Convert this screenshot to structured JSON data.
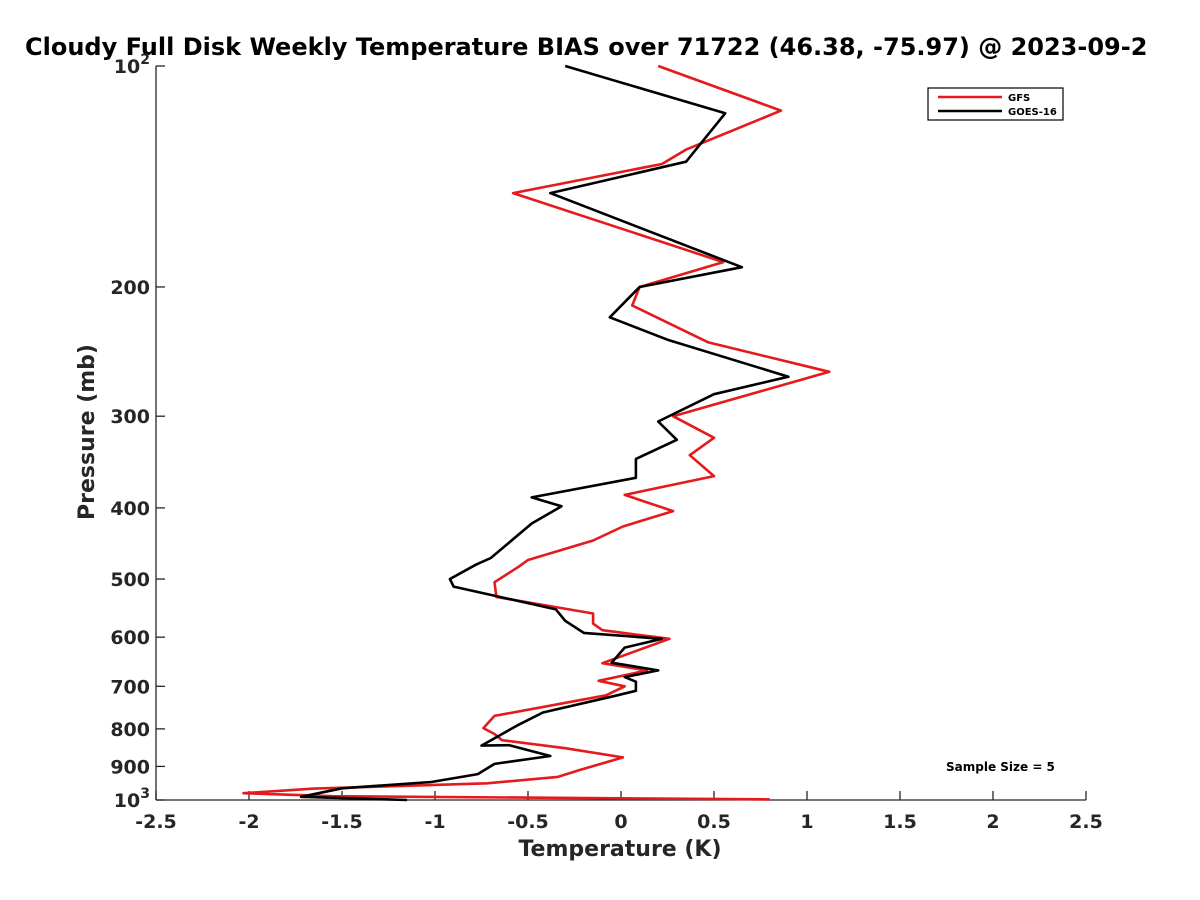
{
  "chart_data": {
    "type": "line",
    "title": "Cloudy Full Disk Weekly Temperature BIAS over 71722 (46.38, -75.97) @ 2023-09-2",
    "xlabel": "Temperature (K)",
    "ylabel": "Pressure (mb)",
    "xlim": [
      -2.5,
      2.5
    ],
    "ylim": [
      100,
      1000
    ],
    "yscale": "log",
    "yreversed": true,
    "x_ticks": [
      "-2.5",
      "-2",
      "-1.5",
      "-1",
      "-0.5",
      "0",
      "0.5",
      "1",
      "1.5",
      "2",
      "2.5"
    ],
    "x_tick_values": [
      -2.5,
      -2,
      -1.5,
      -1,
      -0.5,
      0,
      0.5,
      1,
      1.5,
      2,
      2.5
    ],
    "y_ticks": [
      {
        "value": 100,
        "base": "10",
        "exp": "2"
      },
      {
        "value": 200,
        "label": "200"
      },
      {
        "value": 300,
        "label": "300"
      },
      {
        "value": 400,
        "label": "400"
      },
      {
        "value": 500,
        "label": "500"
      },
      {
        "value": 600,
        "label": "600"
      },
      {
        "value": 700,
        "label": "700"
      },
      {
        "value": 800,
        "label": "800"
      },
      {
        "value": 900,
        "label": "900"
      },
      {
        "value": 1000,
        "base": "10",
        "exp": "3"
      }
    ],
    "legend_position": "top-right",
    "grid": false,
    "series": [
      {
        "name": "GFS",
        "color": "#e41a1c",
        "points": [
          [
            0.2,
            100
          ],
          [
            0.86,
            115
          ],
          [
            0.35,
            130
          ],
          [
            0.22,
            136
          ],
          [
            -0.58,
            149
          ],
          [
            0.55,
            185
          ],
          [
            0.1,
            200
          ],
          [
            0.06,
            212
          ],
          [
            0.47,
            238
          ],
          [
            1.12,
            261
          ],
          [
            0.28,
            300
          ],
          [
            0.5,
            321
          ],
          [
            0.37,
            339
          ],
          [
            0.5,
            362
          ],
          [
            0.02,
            384
          ],
          [
            0.28,
            404
          ],
          [
            0.01,
            424
          ],
          [
            -0.15,
            443
          ],
          [
            -0.5,
            471
          ],
          [
            -0.55,
            481
          ],
          [
            -0.68,
            505
          ],
          [
            -0.67,
            529
          ],
          [
            -0.15,
            557
          ],
          [
            -0.15,
            575
          ],
          [
            -0.1,
            587
          ],
          [
            0.26,
            603
          ],
          [
            -0.1,
            651
          ],
          [
            0.14,
            666
          ],
          [
            -0.12,
            688
          ],
          [
            0.02,
            700
          ],
          [
            -0.08,
            720
          ],
          [
            -0.68,
            768
          ],
          [
            -0.74,
            798
          ],
          [
            -0.68,
            813
          ],
          [
            -0.64,
            829
          ],
          [
            -0.3,
            850
          ],
          [
            0.01,
            875
          ],
          [
            -0.22,
            910
          ],
          [
            -0.34,
            930
          ],
          [
            -0.72,
            949
          ],
          [
            -1.65,
            965
          ],
          [
            -2.03,
            979
          ],
          [
            -1.55,
            988
          ],
          [
            0.8,
            998
          ]
        ]
      },
      {
        "name": "GOES-16",
        "color": "#000000",
        "points": [
          [
            -0.3,
            100
          ],
          [
            0.56,
            116
          ],
          [
            0.35,
            135
          ],
          [
            -0.38,
            149
          ],
          [
            0.65,
            188
          ],
          [
            0.1,
            200
          ],
          [
            -0.06,
            220
          ],
          [
            0.25,
            236
          ],
          [
            0.9,
            265
          ],
          [
            0.5,
            280
          ],
          [
            0.2,
            305
          ],
          [
            0.3,
            323
          ],
          [
            0.08,
            343
          ],
          [
            0.08,
            364
          ],
          [
            -0.48,
            387
          ],
          [
            -0.32,
            398
          ],
          [
            -0.48,
            420
          ],
          [
            -0.7,
            468
          ],
          [
            -0.78,
            478
          ],
          [
            -0.92,
            500
          ],
          [
            -0.9,
            512
          ],
          [
            -0.35,
            550
          ],
          [
            -0.3,
            570
          ],
          [
            -0.2,
            592
          ],
          [
            0.22,
            603
          ],
          [
            0.02,
            620
          ],
          [
            -0.05,
            650
          ],
          [
            0.2,
            666
          ],
          [
            0.02,
            680
          ],
          [
            0.08,
            690
          ],
          [
            0.08,
            710
          ],
          [
            -0.02,
            720
          ],
          [
            -0.42,
            760
          ],
          [
            -0.56,
            792
          ],
          [
            -0.75,
            843
          ],
          [
            -0.6,
            842
          ],
          [
            -0.38,
            871
          ],
          [
            -0.68,
            893
          ],
          [
            -0.77,
            922
          ],
          [
            -1.02,
            945
          ],
          [
            -1.5,
            964
          ],
          [
            -1.72,
            990
          ],
          [
            -1.15,
            1000
          ]
        ]
      }
    ],
    "annotation": "Sample Size = 5"
  }
}
